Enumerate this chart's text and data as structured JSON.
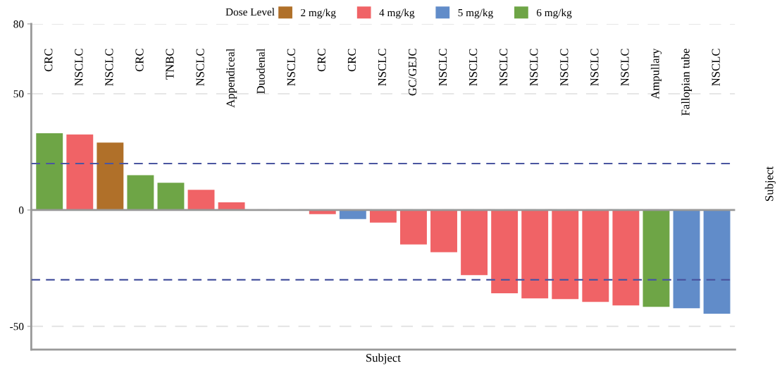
{
  "chart_data": {
    "type": "bar",
    "xlabel": "Subject",
    "legend_title": "Dose Level",
    "legend": "top",
    "categories": [
      "CRC",
      "NSCLC",
      "NSCLC",
      "CRC",
      "TNBC",
      "NSCLC",
      "Appendiceal",
      "Duodenal",
      "NSCLC",
      "CRC",
      "CRC",
      "NSCLC",
      "GC/GEJC",
      "NSCLC",
      "NSCLC",
      "NSCLC",
      "NSCLC",
      "NSCLC",
      "NSCLC",
      "NSCLC",
      "Ampullary",
      "Fallopian tube",
      "NSCLC"
    ],
    "series": [
      {
        "name": "2 mg/kg",
        "color": "#b07029",
        "values": [
          null,
          null,
          29,
          null,
          null,
          null,
          null,
          null,
          null,
          null,
          null,
          null,
          null,
          null,
          null,
          null,
          null,
          null,
          null,
          null,
          null,
          null,
          null
        ]
      },
      {
        "name": "4 mg/kg",
        "color": "#f06366",
        "values": [
          null,
          32.5,
          null,
          null,
          null,
          8.7,
          3.3,
          0,
          0,
          -1.8,
          null,
          -5.4,
          -14.8,
          -18.1,
          -28,
          -35.8,
          -38,
          -38.3,
          -39.5,
          -41,
          null,
          null,
          null
        ]
      },
      {
        "name": "5 mg/kg",
        "color": "#618cc9",
        "values": [
          null,
          null,
          null,
          null,
          null,
          null,
          null,
          null,
          null,
          null,
          -3.9,
          null,
          null,
          null,
          null,
          null,
          null,
          null,
          null,
          null,
          null,
          -42.2,
          -44.6
        ]
      },
      {
        "name": "6 mg/kg",
        "color": "#6ea546",
        "values": [
          33,
          null,
          null,
          15,
          11.7,
          null,
          null,
          null,
          null,
          null,
          null,
          null,
          null,
          null,
          null,
          null,
          null,
          null,
          null,
          null,
          -41.6,
          null,
          null
        ]
      }
    ],
    "ylim": [
      -60,
      80
    ],
    "yticks": [
      80,
      50,
      0,
      -50
    ],
    "grid": "y",
    "ref_lines": [
      {
        "axis": "y",
        "value": 20,
        "color": "#4a56a0",
        "line_style": "dashed"
      },
      {
        "axis": "y",
        "value": -30,
        "color": "#4a56a0",
        "line_style": "dashed"
      }
    ],
    "annotations": [
      "Subject"
    ]
  }
}
